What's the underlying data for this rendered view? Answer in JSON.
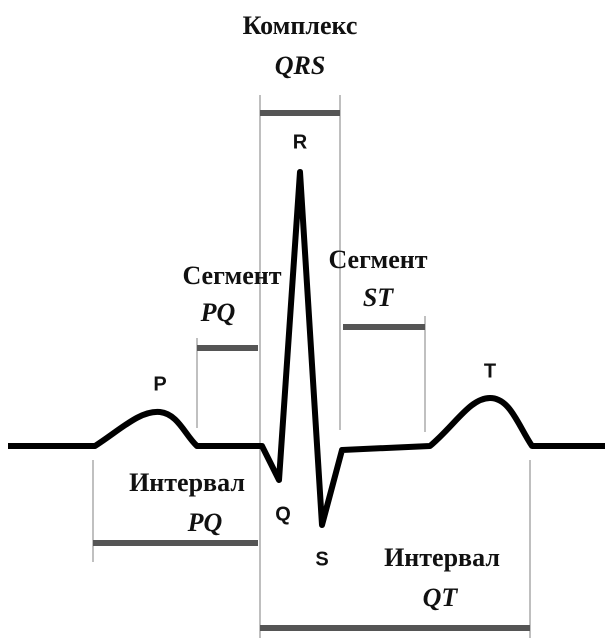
{
  "complex": {
    "title": "Комплекс",
    "name": "QRS"
  },
  "segment_pq": {
    "title": "Сегмент",
    "name": "PQ"
  },
  "segment_st": {
    "title": "Сегмент",
    "name": "ST"
  },
  "interval_pq": {
    "title": "Интервал",
    "name": "PQ"
  },
  "interval_qt": {
    "title": "Интервал",
    "name": "QT"
  },
  "waves": {
    "p": "P",
    "q": "Q",
    "r": "R",
    "s": "S",
    "t": "T"
  }
}
